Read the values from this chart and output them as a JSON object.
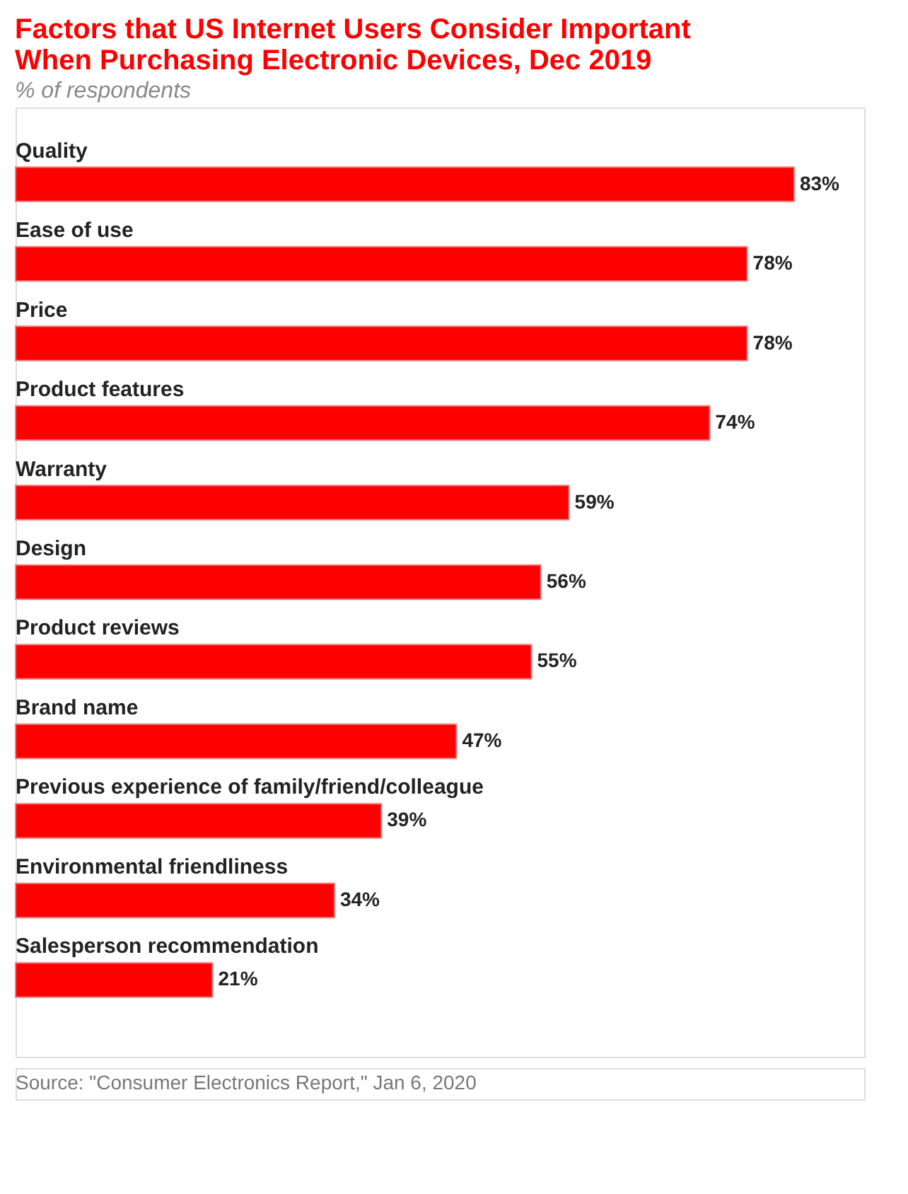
{
  "chart_data": {
    "type": "bar",
    "orientation": "horizontal",
    "title": [
      "Factors that US Internet Users Consider Important",
      "When Purchasing Electronic Devices, Dec 2019"
    ],
    "subtitle": "% of respondents",
    "categories": [
      "Quality",
      "Ease of use",
      "Price",
      "Product features",
      "Warranty",
      "Design",
      "Product reviews",
      "Brand name",
      "Previous experience of family/friend/colleague",
      "Environmental friendliness",
      "Salesperson recommendation"
    ],
    "values": [
      83,
      78,
      78,
      74,
      59,
      56,
      55,
      47,
      39,
      34,
      21
    ],
    "value_labels": [
      "83%",
      "78%",
      "78%",
      "74%",
      "59%",
      "56%",
      "55%",
      "47%",
      "39%",
      "34%",
      "21%"
    ],
    "color": "#ff0000",
    "annotations": [
      "Source: \"Consumer Electronics Report,\" Jan 6, 2020"
    ]
  }
}
